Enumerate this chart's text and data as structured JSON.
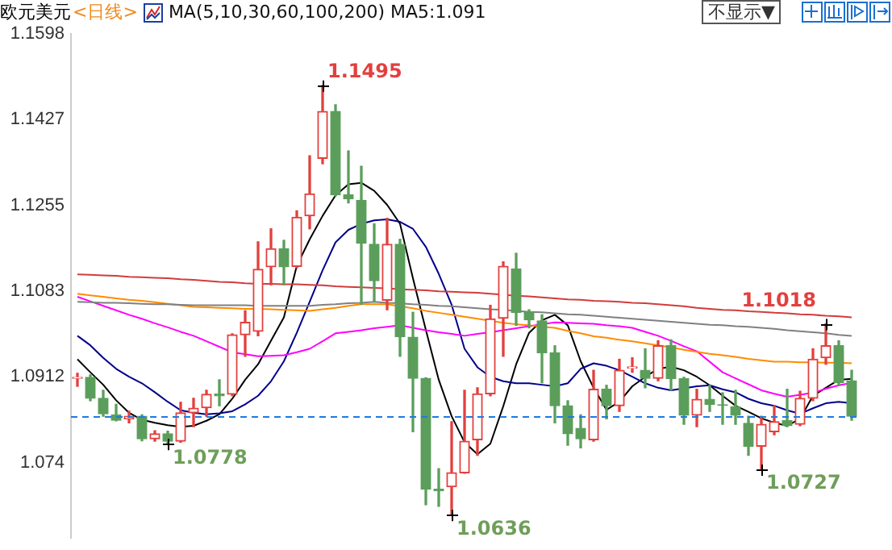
{
  "chart_data": {
    "type": "candlestick",
    "title": "欧元美元",
    "subtitle": "<日线>",
    "categories": [
      null,
      null,
      null,
      null,
      null,
      null,
      null,
      null,
      null,
      null,
      null,
      null,
      null,
      null,
      null,
      null,
      null,
      null,
      null,
      null,
      null,
      null,
      null,
      null,
      null,
      null,
      null,
      null,
      null,
      null,
      null,
      null,
      null,
      null,
      null,
      null,
      null,
      null,
      null,
      null,
      null,
      null,
      null,
      null,
      null,
      null,
      null,
      null,
      null,
      null,
      null,
      null,
      null,
      null,
      null,
      null,
      null,
      null,
      null,
      null,
      null
    ],
    "ohlc": [
      [
        1.0909,
        1.0919,
        1.0893,
        1.0911
      ],
      [
        1.0911,
        1.0916,
        1.0864,
        1.0869
      ],
      [
        1.0869,
        1.0885,
        1.0833,
        1.0838
      ],
      [
        1.0836,
        1.0857,
        1.0824,
        1.0825
      ],
      [
        1.0828,
        1.0843,
        1.082,
        1.0833
      ],
      [
        1.0833,
        1.0836,
        1.0784,
        1.0788
      ],
      [
        1.0788,
        1.0804,
        1.0783,
        1.0798
      ],
      [
        1.0798,
        1.0803,
        1.0778,
        1.0783
      ],
      [
        1.0783,
        1.0861,
        1.0781,
        1.084
      ],
      [
        1.084,
        1.0869,
        1.0812,
        1.0849
      ],
      [
        1.085,
        1.0885,
        1.0833,
        1.0877
      ],
      [
        1.0878,
        1.0906,
        1.0854,
        1.0874
      ],
      [
        1.0877,
        1.0998,
        1.0874,
        1.0996
      ],
      [
        1.0996,
        1.1044,
        1.0953,
        1.1021
      ],
      [
        1.1003,
        1.1182,
        1.0994,
        1.1127
      ],
      [
        1.1132,
        1.1208,
        1.1096,
        1.1168
      ],
      [
        1.1168,
        1.1185,
        1.1096,
        1.1132
      ],
      [
        1.1133,
        1.1244,
        1.113,
        1.1231
      ],
      [
        1.1234,
        1.1354,
        1.1208,
        1.1278
      ],
      [
        1.1349,
        1.1495,
        1.1338,
        1.1443
      ],
      [
        1.1443,
        1.1456,
        1.1274,
        1.1276
      ],
      [
        1.1276,
        1.1364,
        1.126,
        1.1268
      ],
      [
        1.1265,
        1.1333,
        1.1057,
        1.1179
      ],
      [
        1.1177,
        1.1218,
        1.1062,
        1.1104
      ],
      [
        1.1065,
        1.1229,
        1.1046,
        1.1177
      ],
      [
        1.1177,
        1.1187,
        1.0953,
        1.0992
      ],
      [
        1.0991,
        1.1041,
        1.0802,
        1.0909
      ],
      [
        1.0909,
        1.091,
        1.0656,
        1.0687
      ],
      [
        1.0687,
        1.0728,
        1.0653,
        1.0684
      ],
      [
        1.0692,
        1.0822,
        1.0636,
        1.072
      ],
      [
        1.072,
        1.0885,
        1.0719,
        1.0783
      ],
      [
        1.0786,
        1.089,
        1.0755,
        1.0878
      ],
      [
        1.0878,
        1.1055,
        1.0874,
        1.1028
      ],
      [
        1.1029,
        1.1142,
        1.0953,
        1.1133
      ],
      [
        1.1128,
        1.1159,
        1.1015,
        1.1041
      ],
      [
        1.1041,
        1.1046,
        1.101,
        1.1026
      ],
      [
        1.1024,
        1.1036,
        1.09,
        1.096
      ],
      [
        1.096,
        1.0974,
        1.082,
        1.0854
      ],
      [
        1.0854,
        1.0864,
        1.0775,
        1.0798
      ],
      [
        1.0809,
        1.0836,
        1.077,
        1.0788
      ],
      [
        1.0786,
        1.0925,
        1.0783,
        1.0887
      ],
      [
        1.0887,
        1.0895,
        1.0828,
        1.0854
      ],
      [
        1.0854,
        1.0947,
        1.0843,
        1.0925
      ],
      [
        1.0929,
        1.095,
        1.0921,
        1.0932
      ],
      [
        1.0925,
        1.0968,
        1.089,
        1.0909
      ],
      [
        1.0909,
        1.0984,
        1.0904,
        1.0974
      ],
      [
        1.0974,
        1.0986,
        1.0885,
        1.0908
      ],
      [
        1.0908,
        1.0911,
        1.0817,
        1.0835
      ],
      [
        1.0835,
        1.0887,
        1.0812,
        1.0867
      ],
      [
        1.0867,
        1.0895,
        1.0843,
        1.0857
      ],
      [
        1.0856,
        1.088,
        1.0817,
        1.0855
      ],
      [
        1.0852,
        1.0885,
        1.0817,
        1.0835
      ],
      [
        1.0819,
        1.0833,
        1.0755,
        1.0773
      ],
      [
        1.0773,
        1.0833,
        1.0727,
        1.0817
      ],
      [
        1.0802,
        1.0854,
        1.0796,
        1.0822
      ],
      [
        1.0824,
        1.0887,
        1.0812,
        1.0814
      ],
      [
        1.0817,
        1.0883,
        1.0814,
        1.0869
      ],
      [
        1.0869,
        1.0968,
        1.0864,
        1.0947
      ],
      [
        1.095,
        1.1018,
        1.0937,
        1.0974
      ],
      [
        1.0974,
        1.0984,
        1.0895,
        1.09
      ],
      [
        1.0904,
        1.0925,
        1.0825,
        1.0833
      ]
    ],
    "colors": [
      "#e2403e",
      "#5b9e5b",
      "#5b9e5b",
      "#5b9e5b",
      "#e2403e",
      "#5b9e5b",
      "#e2403e",
      "#5b9e5b",
      "#e2403e",
      "#e2403e",
      "#e2403e",
      "#5b9e5b",
      "#e2403e",
      "#e2403e",
      "#e2403e",
      "#e2403e",
      "#5b9e5b",
      "#e2403e",
      "#e2403e",
      "#e2403e",
      "#5b9e5b",
      "#5b9e5b",
      "#5b9e5b",
      "#5b9e5b",
      "#e2403e",
      "#5b9e5b",
      "#5b9e5b",
      "#5b9e5b",
      "#5b9e5b",
      "#e2403e",
      "#e2403e",
      "#e2403e",
      "#e2403e",
      "#e2403e",
      "#5b9e5b",
      "#5b9e5b",
      "#5b9e5b",
      "#5b9e5b",
      "#5b9e5b",
      "#5b9e5b",
      "#e2403e",
      "#5b9e5b",
      "#e2403e",
      "#e2403e",
      "#5b9e5b",
      "#e2403e",
      "#5b9e5b",
      "#5b9e5b",
      "#e2403e",
      "#5b9e5b",
      "#5b9e5b",
      "#5b9e5b",
      "#5b9e5b",
      "#e2403e",
      "#e2403e",
      "#5b9e5b",
      "#e2403e",
      "#e2403e",
      "#e2403e",
      "#5b9e5b",
      "#5b9e5b"
    ],
    "series": [
      {
        "type": "line",
        "color": "#d23c3c",
        "values": [
          1.1117,
          1.1116,
          1.1115,
          1.1114,
          1.1112,
          1.1111,
          1.111,
          1.1109,
          1.1107,
          1.1106,
          1.1104,
          1.1102,
          1.1101,
          1.1099,
          1.1098,
          1.1098,
          1.1097,
          1.1097,
          1.1096,
          1.1095,
          1.1093,
          1.1092,
          1.1091,
          1.109,
          1.1089,
          1.1087,
          1.1086,
          1.1085,
          1.1083,
          1.1082,
          1.1081,
          1.108,
          1.1078,
          1.1076,
          1.1074,
          1.1073,
          1.1071,
          1.1069,
          1.1067,
          1.1066,
          1.1064,
          1.1063,
          1.1062,
          1.106,
          1.1059,
          1.1057,
          1.1055,
          1.1053,
          1.105,
          1.1048,
          1.1046,
          1.1045,
          1.1043,
          1.1042,
          1.104,
          1.1039,
          1.1037,
          1.1036,
          1.1034,
          1.1033,
          1.1031
        ]
      },
      {
        "type": "line",
        "color": "#808080",
        "values": [
          1.1062,
          1.1061,
          1.106,
          1.106,
          1.1059,
          1.1058,
          1.1057,
          1.1057,
          1.1056,
          1.1055,
          1.1055,
          1.1055,
          1.1055,
          1.1055,
          1.1054,
          1.1054,
          1.1054,
          1.1054,
          1.1054,
          1.1056,
          1.1057,
          1.1059,
          1.106,
          1.1062,
          1.106,
          1.1059,
          1.1057,
          1.1056,
          1.1054,
          1.1053,
          1.1051,
          1.1049,
          1.1047,
          1.1046,
          1.1044,
          1.1042,
          1.1041,
          1.1039,
          1.1037,
          1.1036,
          1.1034,
          1.1032,
          1.103,
          1.1028,
          1.1026,
          1.1024,
          1.1022,
          1.102,
          1.1018,
          1.1016,
          1.1015,
          1.1013,
          1.1012,
          1.101,
          1.1008,
          1.1005,
          1.1003,
          1.1001,
          1.0999,
          1.0996,
          1.0994
        ]
      },
      {
        "type": "line",
        "color": "#ff8c00",
        "values": [
          1.1078,
          1.1075,
          1.1072,
          1.1069,
          1.1066,
          1.1064,
          1.1061,
          1.1058,
          1.1055,
          1.1052,
          1.1051,
          1.105,
          1.1049,
          1.1048,
          1.1048,
          1.1047,
          1.1046,
          1.1045,
          1.1044,
          1.1047,
          1.105,
          1.1054,
          1.1057,
          1.1057,
          1.1057,
          1.1053,
          1.1049,
          1.1044,
          1.104,
          1.1036,
          1.1032,
          1.1028,
          1.1024,
          1.102,
          1.1017,
          1.1015,
          1.1012,
          1.101,
          1.1004,
          1.0999,
          1.0993,
          1.099,
          1.0986,
          1.0983,
          1.0979,
          1.0975,
          1.0971,
          1.0966,
          1.0962,
          1.0958,
          1.0955,
          1.0952,
          1.0948,
          1.0945,
          1.0942,
          1.0942,
          1.0941,
          1.0941,
          1.094,
          1.094,
          1.0939
        ]
      },
      {
        "type": "line",
        "color": "#ff00ff",
        "values": [
          1.1072,
          1.1063,
          1.1054,
          1.1045,
          1.1036,
          1.1028,
          1.1019,
          1.1011,
          1.1002,
          1.0994,
          1.0983,
          1.0972,
          1.0961,
          1.0957,
          1.0953,
          1.0954,
          1.0955,
          1.0961,
          1.0968,
          1.0983,
          1.0999,
          1.1002,
          1.1005,
          1.1009,
          1.1012,
          1.1015,
          1.101,
          1.1005,
          1.1001,
          1.0998,
          1.0994,
          1.0998,
          1.1001,
          1.1005,
          1.1009,
          1.1013,
          1.1017,
          1.1021,
          1.102,
          1.1019,
          1.1018,
          1.1015,
          1.1013,
          1.101,
          1.1002,
          1.0994,
          1.0984,
          1.0973,
          1.0963,
          1.0942,
          1.0921,
          1.0909,
          1.0897,
          1.0885,
          1.0878,
          1.0872,
          1.0876,
          1.088,
          1.0888,
          1.0895,
          1.09
        ]
      },
      {
        "type": "line",
        "color": "#00008b",
        "values": [
          1.0994,
          1.0975,
          1.095,
          1.0928,
          1.0912,
          1.0899,
          1.0881,
          1.0862,
          1.0845,
          1.084,
          1.0837,
          1.0839,
          1.0843,
          1.0857,
          1.0874,
          1.0903,
          1.0943,
          1.1,
          1.1062,
          1.1125,
          1.1181,
          1.1206,
          1.1218,
          1.1225,
          1.1227,
          1.1222,
          1.1208,
          1.1172,
          1.1118,
          1.1056,
          1.0968,
          1.0931,
          1.0912,
          1.0903,
          1.0899,
          1.0899,
          1.0896,
          1.0893,
          1.0899,
          1.0928,
          1.0939,
          1.0934,
          1.0925,
          1.0912,
          1.0899,
          1.089,
          1.0885,
          1.0889,
          1.0893,
          1.0895,
          1.0887,
          1.0881,
          1.0868,
          1.0859,
          1.0854,
          1.0845,
          1.0838,
          1.0849,
          1.0859,
          1.0862,
          1.0859
        ]
      },
      {
        "type": "line",
        "color": "#000000",
        "values": [
          1.0947,
          1.0921,
          1.0896,
          1.0865,
          1.084,
          1.0826,
          1.082,
          1.0815,
          1.0812,
          1.0814,
          1.0824,
          1.0837,
          1.0868,
          1.0906,
          1.0937,
          1.0984,
          1.1031,
          1.1134,
          1.1187,
          1.1234,
          1.1275,
          1.1297,
          1.13,
          1.1284,
          1.1256,
          1.1218,
          1.1109,
          1.1006,
          1.0906,
          1.0833,
          1.0781,
          1.0757,
          1.0778,
          1.0853,
          1.0937,
          1.1,
          1.1025,
          1.1036,
          1.1015,
          1.0943,
          1.089,
          1.0846,
          1.0862,
          1.0893,
          1.0912,
          1.0928,
          1.0932,
          1.0925,
          1.0912,
          1.0895,
          1.0874,
          1.0854,
          1.0842,
          1.0829,
          1.082,
          1.0814,
          1.0828,
          1.0874,
          1.089,
          1.0906,
          1.0908
        ]
      }
    ],
    "ylim": [
      1.059,
      1.1598
    ],
    "yticks": [
      1.074,
      1.0912,
      1.1083,
      1.1255,
      1.1427,
      1.1598
    ],
    "tick_labels": "y",
    "ref_lines": [
      {
        "axis": "y",
        "value": 1.0833,
        "color": "#1e7be0",
        "line_style": "dashed"
      }
    ],
    "annotations": [
      "MA(5,10,30,60,100,200)  MA5:1.091",
      "不显示▼",
      "1.1495",
      "1.0778",
      "1.0636",
      "1.0727",
      "1.1018"
    ]
  }
}
